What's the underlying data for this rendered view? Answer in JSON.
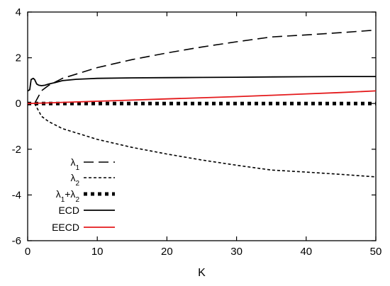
{
  "chart_data": {
    "type": "line",
    "title": "",
    "xlabel": "K",
    "ylabel": "",
    "xlim": [
      0,
      50
    ],
    "ylim": [
      -6,
      4
    ],
    "grid": false,
    "legend_position": "bottom-left",
    "x_ticks": [
      0,
      10,
      20,
      30,
      40,
      50
    ],
    "y_ticks": [
      -6,
      -4,
      -2,
      0,
      2,
      4
    ],
    "series": [
      {
        "name": "λ1",
        "legend_main": "λ",
        "legend_sub": "1",
        "style": "long-dash",
        "color": "#000000",
        "x": [
          1,
          2,
          3,
          5,
          10,
          15,
          20,
          25,
          30,
          35,
          40,
          45,
          50
        ],
        "y": [
          0.0,
          0.56,
          0.79,
          1.1,
          1.57,
          1.92,
          2.21,
          2.47,
          2.7,
          2.91,
          3.0,
          3.1,
          3.21
        ]
      },
      {
        "name": "λ2",
        "legend_main": "λ",
        "legend_sub": "2",
        "style": "short-dash",
        "color": "#000000",
        "x": [
          1,
          2,
          3,
          5,
          10,
          15,
          20,
          25,
          30,
          35,
          40,
          45,
          50
        ],
        "y": [
          0.0,
          -0.56,
          -0.79,
          -1.1,
          -1.57,
          -1.92,
          -2.21,
          -2.47,
          -2.7,
          -2.91,
          -3.0,
          -3.1,
          -3.21
        ]
      },
      {
        "name": "λ1+λ2",
        "legend_parts": [
          "λ",
          "1",
          "+λ",
          "2"
        ],
        "style": "thick-dotted",
        "color": "#000000",
        "x": [
          0,
          50
        ],
        "y": [
          0,
          0
        ]
      },
      {
        "name": "ECD",
        "style": "solid",
        "color": "#000000",
        "x": [
          0,
          0.3,
          0.5,
          0.8,
          1.0,
          1.3,
          1.6,
          2.0,
          2.5,
          3.0,
          4.0,
          5.0,
          7.0,
          10.0,
          15.0,
          20.0,
          25.0,
          30.0,
          35.0,
          40.0,
          45.0,
          50.0
        ],
        "y": [
          0.55,
          0.6,
          1.05,
          1.1,
          1.05,
          0.85,
          0.8,
          0.78,
          0.8,
          0.85,
          0.92,
          1.0,
          1.06,
          1.1,
          1.12,
          1.13,
          1.14,
          1.15,
          1.16,
          1.17,
          1.18,
          1.18
        ]
      },
      {
        "name": "EECD",
        "style": "solid",
        "color": "#e41a1c",
        "x": [
          0,
          2,
          5,
          10,
          15,
          20,
          25,
          30,
          35,
          40,
          45,
          50
        ],
        "y": [
          0.0,
          0.02,
          0.05,
          0.1,
          0.15,
          0.2,
          0.25,
          0.3,
          0.36,
          0.42,
          0.48,
          0.55
        ]
      }
    ]
  }
}
